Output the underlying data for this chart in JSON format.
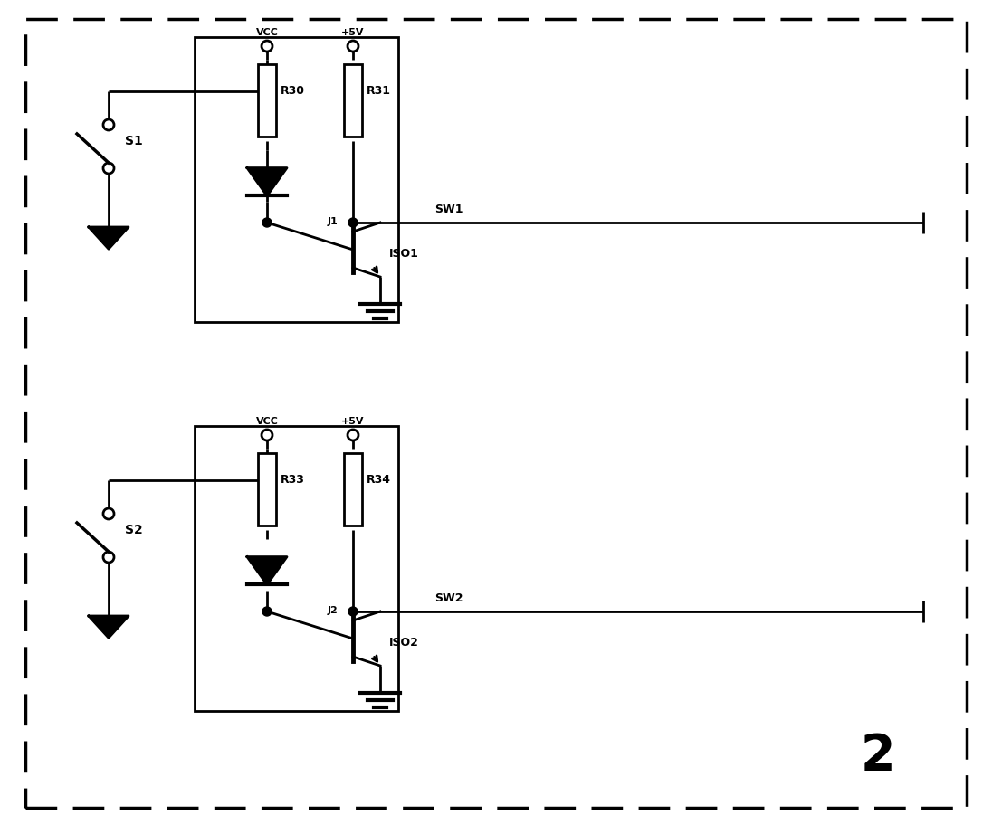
{
  "bg_color": "#ffffff",
  "line_color": "#000000",
  "fig_width": 10.96,
  "fig_height": 9.11,
  "dpi": 100,
  "labels": {
    "VCC1": "VCC",
    "VCC2": "VCC",
    "V5_1": "+5V",
    "V5_2": "+5V",
    "R30": "R30",
    "R31": "R31",
    "R33": "R33",
    "R34": "R34",
    "SW1": "SW1",
    "SW2": "SW2",
    "ISO1": "ISO1",
    "ISO2": "ISO2",
    "S1": "S1",
    "S2": "S2",
    "J1": "J1",
    "J2": "J2",
    "num": "2"
  }
}
